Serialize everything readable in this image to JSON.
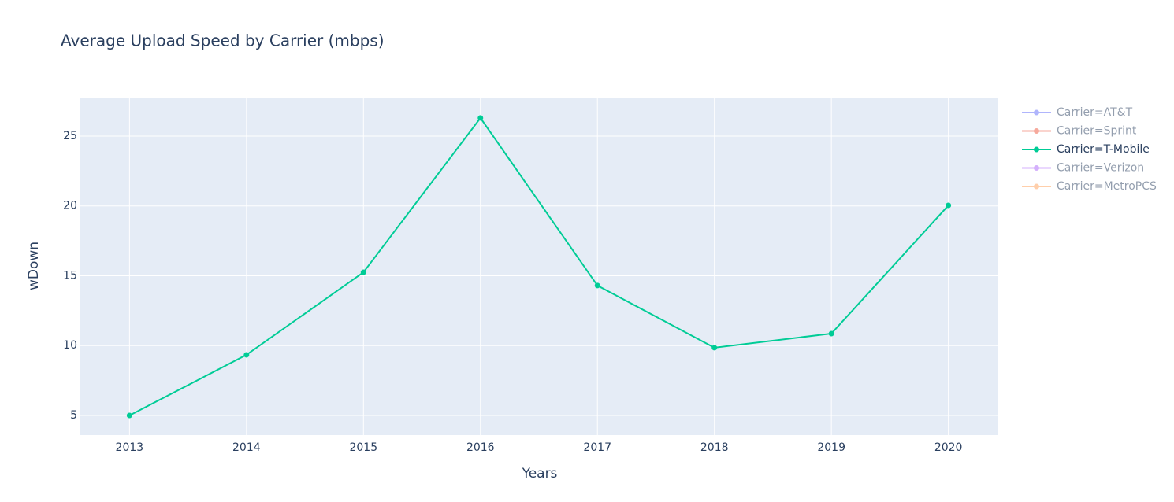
{
  "chart_data": {
    "type": "line",
    "title": "Average Upload Speed by Carrier (mbps)",
    "xlabel": "Years",
    "ylabel": "wDown",
    "x": [
      2013,
      2014,
      2015,
      2016,
      2017,
      2018,
      2019,
      2020
    ],
    "series": [
      {
        "name": "Carrier=AT&T",
        "color": "#636efa",
        "visible": "legendonly",
        "values": [
          null,
          null,
          null,
          null,
          null,
          null,
          null,
          null
        ]
      },
      {
        "name": "Carrier=Sprint",
        "color": "#EF553B",
        "visible": "legendonly",
        "values": [
          null,
          null,
          null,
          null,
          null,
          null,
          null,
          null
        ]
      },
      {
        "name": "Carrier=T-Mobile",
        "color": "#00cc96",
        "visible": true,
        "values": [
          5.0,
          9.34,
          15.25,
          26.3,
          14.3,
          9.85,
          10.86,
          20.04
        ]
      },
      {
        "name": "Carrier=Verizon",
        "color": "#ab63fa",
        "visible": "legendonly",
        "values": [
          null,
          null,
          null,
          null,
          null,
          null,
          null,
          null
        ]
      },
      {
        "name": "Carrier=MetroPCS",
        "color": "#FFA15A",
        "visible": "legendonly",
        "values": [
          null,
          null,
          null,
          null,
          null,
          null,
          null,
          null
        ]
      }
    ],
    "xlim": [
      2012.58,
      2020.42
    ],
    "xticks": [
      2013,
      2014,
      2015,
      2016,
      2017,
      2018,
      2019,
      2020
    ],
    "ylim": [
      3.59,
      27.76
    ],
    "yticks": [
      5,
      10,
      15,
      20,
      25
    ],
    "grid": true,
    "legend": "right"
  }
}
